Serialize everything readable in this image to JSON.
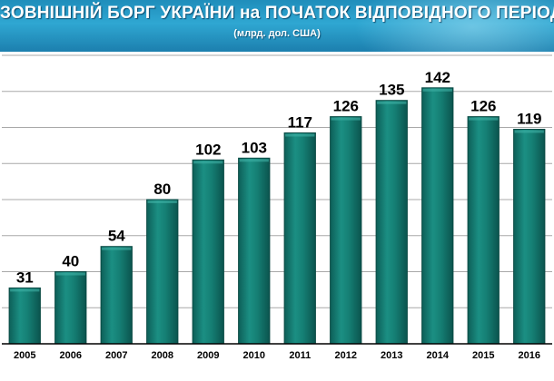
{
  "header": {
    "title": "ЗОВНІШНІЙ БОРГ УКРАЇНИ на ПОЧАТОК ВІДПОВІДНОГО ПЕРІОДУ",
    "subtitle": "(млрд. дол. США)"
  },
  "colors": {
    "header_bg": "#2a9dca",
    "bar_fill": "#137a70",
    "bar_highlight": "#3fb3a6",
    "gridline": "#a8a8a8"
  },
  "chart_data": {
    "type": "bar",
    "title": "ЗОВНІШНІЙ БОРГ УКРАЇНИ на ПОЧАТОК ВІДПОВІДНОГО ПЕРІОДУ",
    "subtitle": "(млрд. дол. США)",
    "categories": [
      "2005",
      "2006",
      "2007",
      "2008",
      "2009",
      "2010",
      "2011",
      "2012",
      "2013",
      "2014",
      "2015",
      "2016"
    ],
    "values": [
      31,
      40,
      54,
      80,
      102,
      103,
      117,
      126,
      135,
      142,
      126,
      119
    ],
    "data_labels": [
      "31",
      "40",
      "54",
      "80",
      "102",
      "103",
      "117",
      "126",
      "135",
      "142",
      "126",
      "119"
    ],
    "xlabel": "",
    "ylabel": "",
    "ylim": [
      0,
      160
    ],
    "grid": true,
    "legend": "none"
  }
}
